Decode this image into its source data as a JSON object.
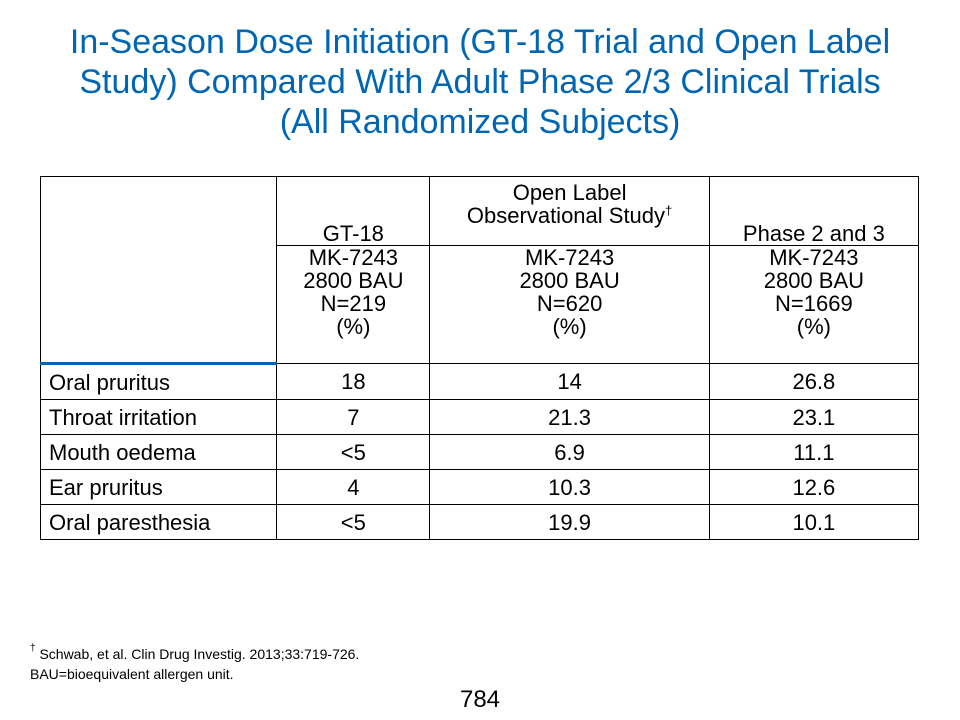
{
  "title": {
    "line1": "In-Season Dose Initiation (GT-18 Trial and Open Label",
    "line2": "Study) Compared With Adult Phase 2/3 Clinical Trials",
    "line3": "(All Randomized Subjects)"
  },
  "table": {
    "columns": [
      {
        "header": "GT-18",
        "dose": [
          "MK-7243",
          "2800 BAU",
          "N=219",
          "(%)"
        ]
      },
      {
        "header_line1": "Open Label",
        "header_line2": "Observational Study",
        "header_mark": "†",
        "dose": [
          "MK-7243",
          "2800 BAU",
          "N=620",
          "(%)"
        ]
      },
      {
        "header": "Phase 2 and 3",
        "dose": [
          "MK-7243",
          "2800 BAU",
          "N=1669",
          "(%)"
        ]
      }
    ],
    "rows": [
      {
        "label": "Oral pruritus",
        "values": [
          "18",
          "14",
          "26.8"
        ]
      },
      {
        "label": "Throat irritation",
        "values": [
          "7",
          "21.3",
          "23.1"
        ]
      },
      {
        "label": "Mouth oedema",
        "values": [
          "<5",
          "6.9",
          "11.1"
        ]
      },
      {
        "label": "Ear pruritus",
        "values": [
          "4",
          "10.3",
          "12.6"
        ]
      },
      {
        "label": "Oral paresthesia",
        "values": [
          "<5",
          "19.9",
          "10.1"
        ]
      }
    ]
  },
  "footnote": {
    "mark": "†",
    "line1": " Schwab, et al. Clin Drug Investig. 2013;33:719-726.",
    "line2": "BAU=bioequivalent allergen unit."
  },
  "page_number": "784",
  "colors": {
    "title": "#0066b3",
    "header_rule": "#0066b3"
  }
}
